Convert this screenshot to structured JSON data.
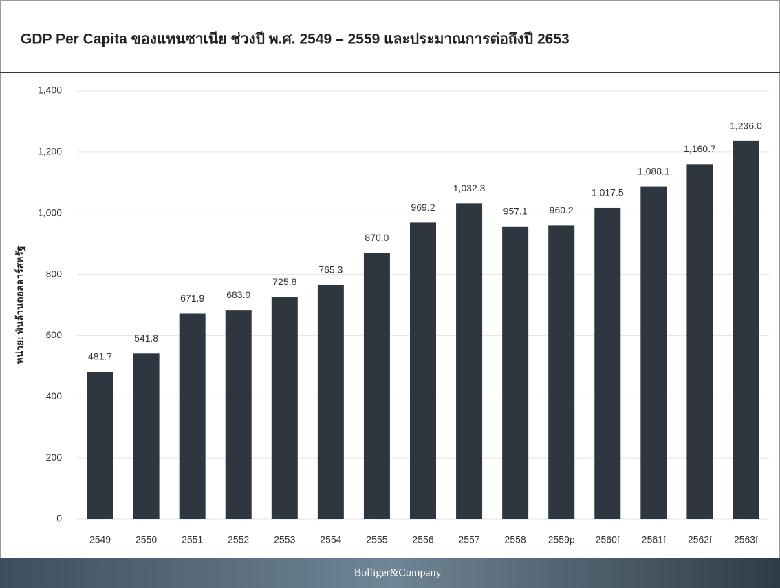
{
  "chart_data": {
    "type": "bar",
    "title": "GDP Per Capita ของแทนซาเนีย ช่วงปี พ.ศ. 2549 – 2559 และประมาณการต่อถึงปี 2653",
    "y_label": "หน่วย: พันล้านดอลลาร์สหรัฐ",
    "footer": "Bolliger&Company",
    "categories": [
      "2549",
      "2550",
      "2551",
      "2552",
      "2553",
      "2554",
      "2555",
      "2556",
      "2557",
      "2558",
      "2559p",
      "2560f",
      "2561f",
      "2562f",
      "2563f"
    ],
    "values": [
      481.7,
      541.8,
      671.9,
      683.9,
      725.8,
      765.3,
      870.0,
      969.2,
      1032.3,
      957.1,
      960.2,
      1017.5,
      1088.1,
      1160.7,
      1236.0
    ],
    "value_labels": [
      "481.7",
      "541.8",
      "671.9",
      "683.9",
      "725.8",
      "765.3",
      "870.0",
      "969.2",
      "1,032.3",
      "957.1",
      "960.2",
      "1,017.5",
      "1,088.1",
      "1,160.7",
      "1,236.0"
    ],
    "color": "#2e3740",
    "ylim": [
      0,
      1400
    ],
    "yticks": [
      0,
      200,
      400,
      600,
      800,
      {
        "value": 1000,
        "label": "1,000"
      },
      {
        "value": 1200,
        "label": "1,200"
      },
      {
        "value": 1400,
        "label": "1,400"
      }
    ],
    "grid": true
  }
}
